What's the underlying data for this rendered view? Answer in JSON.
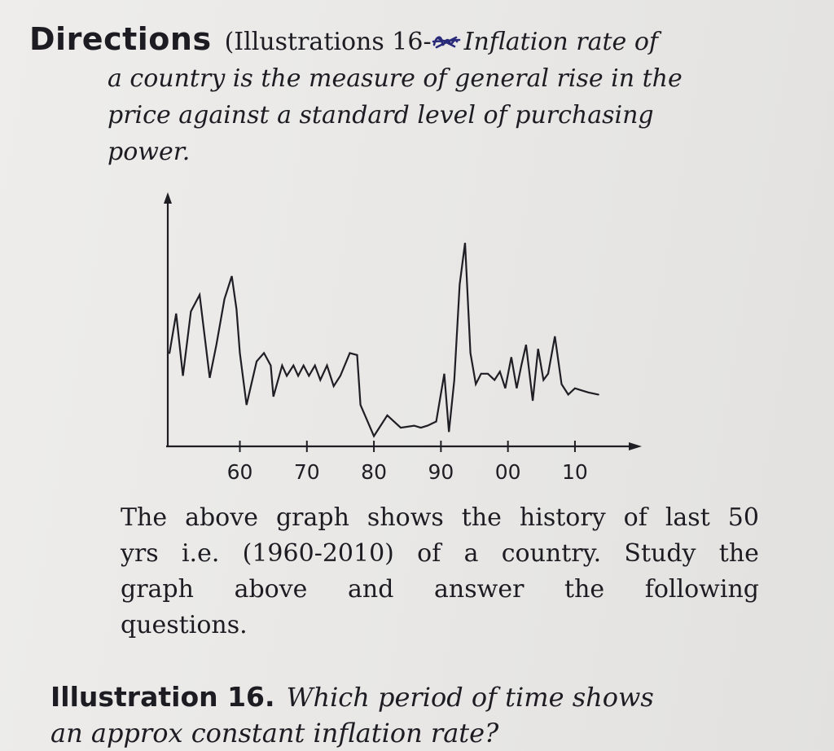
{
  "directions": {
    "label": "Directions",
    "paren_open": "(Illustrations 16-",
    "paren_rest": "Inflation rate of",
    "line2": "a country is the measure of general rise in the",
    "line3": "price against a standard level of purchasing",
    "line4": "power."
  },
  "chart_data": {
    "type": "line",
    "title": "",
    "xlabel": "",
    "ylabel": "",
    "x_ticks": [
      60,
      70,
      80,
      90,
      0,
      10
    ],
    "x_tick_labels": [
      "60",
      "70",
      "80",
      "90",
      "00",
      "10"
    ],
    "xlim": [
      1949,
      2019
    ],
    "ylim": [
      0,
      100
    ],
    "grid": false,
    "series": [
      {
        "x": [
          1949.5,
          1950.5,
          1951.5,
          1952.7,
          1954.0,
          1955.5,
          1956.5,
          1957.7,
          1958.8,
          1959.5,
          1960.0,
          1961.0,
          1962.5,
          1963.6,
          1964.6,
          1965.0,
          1966.3,
          1967.0,
          1968.0,
          1968.7,
          1969.5,
          1970.3,
          1971.2,
          1972.0,
          1973.0,
          1974.0,
          1975.0,
          1976.4,
          1977.5,
          1978.0,
          1980.0,
          1982.0,
          1984.0,
          1986.0,
          1987.0,
          1988.0,
          1989.3,
          1990.5,
          1991.2,
          1992.0,
          1992.8,
          1993.6,
          1994.4,
          1995.2,
          1996.0,
          1997.0,
          1998.0,
          1998.8,
          1999.6,
          2000.5,
          2001.3,
          2002.0,
          2002.7,
          2003.7,
          2004.5,
          2005.3,
          2006.0,
          2007.0,
          2008.0,
          2009.0,
          2010.0,
          2011.0,
          2012.0,
          2013.5
        ],
        "y": [
          43,
          62,
          32,
          63,
          71,
          31,
          47,
          69,
          80,
          64,
          43,
          18,
          39,
          43,
          37,
          22,
          37,
          32,
          37,
          32,
          37,
          32,
          37,
          30,
          37,
          27,
          32,
          43,
          42,
          18,
          3,
          13,
          7,
          8,
          7,
          8,
          10,
          33,
          5,
          30,
          76,
          96,
          43,
          28,
          33,
          33,
          30,
          34,
          26,
          41,
          26,
          37,
          47,
          20,
          45,
          30,
          33,
          51,
          28,
          23,
          26,
          25,
          24,
          23
        ]
      }
    ]
  },
  "body": {
    "lines": [
      [
        "The",
        "above",
        "graph",
        "shows",
        "the",
        "history",
        "of",
        "last",
        "50"
      ],
      [
        "yrs",
        "i.e.",
        "(1960-2010)",
        "of",
        "a",
        "country.",
        "Study",
        "the"
      ],
      [
        "graph",
        "above",
        "and",
        "answer",
        "the",
        "following"
      ]
    ],
    "last_line": "questions."
  },
  "illustration": {
    "label": "Illustration 16.",
    "question_line1": "Which period of time shows",
    "question_line2": "an approx constant inflation rate?"
  }
}
